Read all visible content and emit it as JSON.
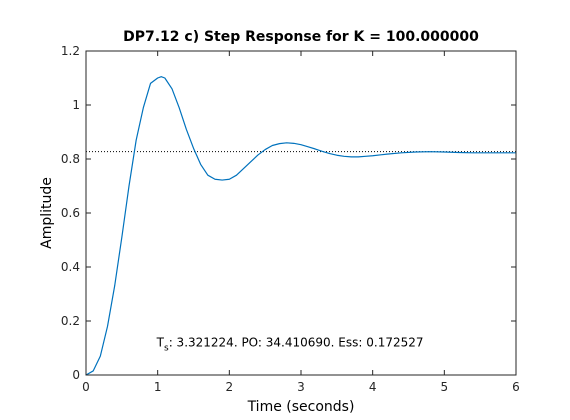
{
  "chart_data": {
    "type": "line",
    "title": "DP7.12 c) Step Response for K = 100.000000",
    "xlabel": "Time (seconds)",
    "ylabel": "Amplitude",
    "xlim": [
      0,
      6
    ],
    "ylim": [
      0,
      1.2
    ],
    "x_ticks": [
      "0",
      "1",
      "2",
      "3",
      "4",
      "5",
      "6"
    ],
    "y_ticks": [
      "0",
      "0.2",
      "0.4",
      "0.6",
      "0.8",
      "1",
      "1.2"
    ],
    "grid": false,
    "colors": {
      "line": "#0072BD",
      "reference": "#000000",
      "axes": "#262626"
    },
    "series": [
      {
        "x": [
          0,
          0.1,
          0.2,
          0.3,
          0.4,
          0.5,
          0.6,
          0.7,
          0.8,
          0.9,
          1.0,
          1.05,
          1.1,
          1.2,
          1.3,
          1.4,
          1.5,
          1.6,
          1.7,
          1.8,
          1.9,
          2.0,
          2.1,
          2.2,
          2.3,
          2.4,
          2.5,
          2.6,
          2.7,
          2.8,
          2.9,
          3.0,
          3.1,
          3.2,
          3.3,
          3.4,
          3.5,
          3.6,
          3.7,
          3.8,
          3.9,
          4.0,
          4.2,
          4.4,
          4.6,
          4.8,
          5.0,
          5.2,
          5.4,
          5.6,
          5.8,
          6.0
        ],
        "values": [
          0,
          0.015,
          0.07,
          0.18,
          0.33,
          0.51,
          0.7,
          0.87,
          0.99,
          1.08,
          1.1,
          1.105,
          1.1,
          1.06,
          0.99,
          0.91,
          0.84,
          0.78,
          0.74,
          0.725,
          0.722,
          0.725,
          0.74,
          0.765,
          0.79,
          0.815,
          0.835,
          0.85,
          0.857,
          0.86,
          0.858,
          0.853,
          0.845,
          0.837,
          0.828,
          0.82,
          0.814,
          0.81,
          0.808,
          0.808,
          0.81,
          0.812,
          0.818,
          0.823,
          0.826,
          0.827,
          0.826,
          0.824,
          0.823,
          0.823,
          0.823,
          0.823
        ]
      }
    ],
    "reference_line": {
      "y": 0.8275
    },
    "annotation": {
      "prefix": "T",
      "subscript": "s",
      "text": ": 3.321224. PO: 34.410690. Ess: 0.172527",
      "x": 1.0,
      "y": 0.105
    }
  }
}
